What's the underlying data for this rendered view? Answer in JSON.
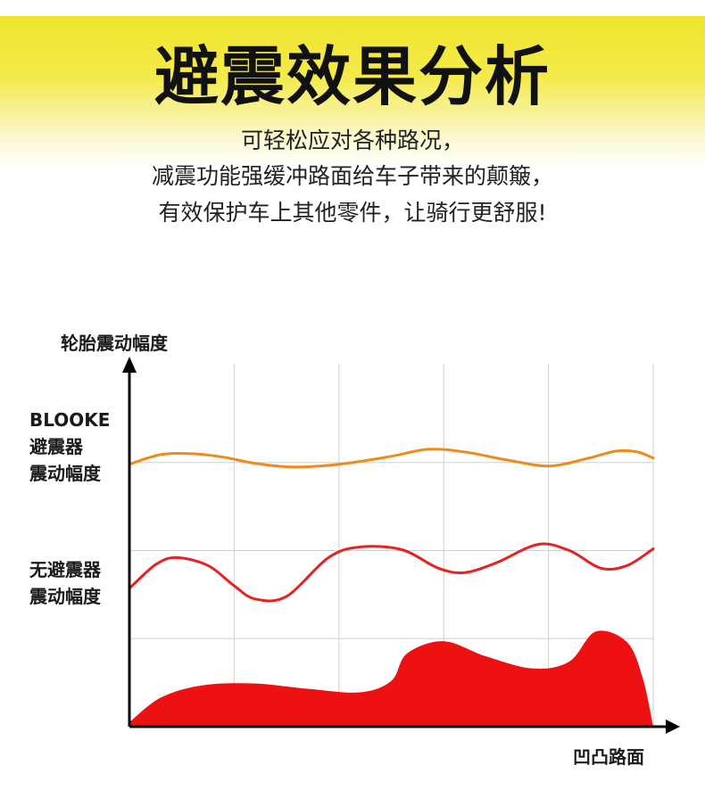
{
  "header": {
    "title": "避震效果分析",
    "subtitle_lines": [
      "可轻松应对各种路况，",
      "减震功能强缓冲路面给车子带来的颠簸，",
      "有效保护车上其他零件，让骑行更舒服!"
    ]
  },
  "colors": {
    "banner_yellow": "#f0e52c",
    "blooke_line": "#f08a1c",
    "no_shock_line": "#e62222",
    "road_fill": "#ee1111",
    "grid": "#cfcfcf",
    "axis": "#000000"
  },
  "chart_data": {
    "type": "line",
    "title": "",
    "ylabel": "轮胎震动幅度",
    "xlabel": "凹凸路面",
    "grid": true,
    "x_unit": "grid columns (0 to 5)",
    "series": [
      {
        "name_lines": [
          "BLOOKE",
          "避震器",
          "震动幅度"
        ],
        "kind": "line",
        "color": "#f08a1c",
        "points": [
          [
            0,
            2.98
          ],
          [
            0.3,
            3.09
          ],
          [
            0.6,
            3.1
          ],
          [
            0.9,
            3.06
          ],
          [
            1.2,
            2.99
          ],
          [
            1.55,
            2.95
          ],
          [
            2.0,
            2.98
          ],
          [
            2.5,
            3.07
          ],
          [
            2.85,
            3.15
          ],
          [
            3.2,
            3.12
          ],
          [
            3.6,
            3.03
          ],
          [
            4.0,
            2.96
          ],
          [
            4.35,
            3.04
          ],
          [
            4.65,
            3.13
          ],
          [
            4.85,
            3.12
          ],
          [
            5.0,
            3.05
          ]
        ]
      },
      {
        "name_lines": [
          "无避震器",
          "震动幅度"
        ],
        "kind": "line",
        "color": "#e62222",
        "points": [
          [
            0,
            1.57
          ],
          [
            0.25,
            1.84
          ],
          [
            0.45,
            1.92
          ],
          [
            0.75,
            1.83
          ],
          [
            1.0,
            1.6
          ],
          [
            1.2,
            1.45
          ],
          [
            1.5,
            1.48
          ],
          [
            1.9,
            1.92
          ],
          [
            2.2,
            2.04
          ],
          [
            2.6,
            2.01
          ],
          [
            2.95,
            1.8
          ],
          [
            3.2,
            1.75
          ],
          [
            3.5,
            1.86
          ],
          [
            3.9,
            2.07
          ],
          [
            4.2,
            2.0
          ],
          [
            4.5,
            1.8
          ],
          [
            4.75,
            1.83
          ],
          [
            5.0,
            2.02
          ]
        ]
      },
      {
        "name": "凹凸路面",
        "kind": "area",
        "color": "#ee1111",
        "points": [
          [
            0,
            0.05
          ],
          [
            0.3,
            0.33
          ],
          [
            0.7,
            0.47
          ],
          [
            1.2,
            0.49
          ],
          [
            1.7,
            0.43
          ],
          [
            2.2,
            0.39
          ],
          [
            2.5,
            0.52
          ],
          [
            2.65,
            0.83
          ],
          [
            3.0,
            0.97
          ],
          [
            3.4,
            0.8
          ],
          [
            3.85,
            0.66
          ],
          [
            4.2,
            0.74
          ],
          [
            4.45,
            1.08
          ],
          [
            4.75,
            0.96
          ],
          [
            4.9,
            0.55
          ],
          [
            5.0,
            0.0
          ]
        ]
      }
    ],
    "ylim": [
      0,
      4
    ],
    "xlim": [
      0,
      5
    ]
  }
}
